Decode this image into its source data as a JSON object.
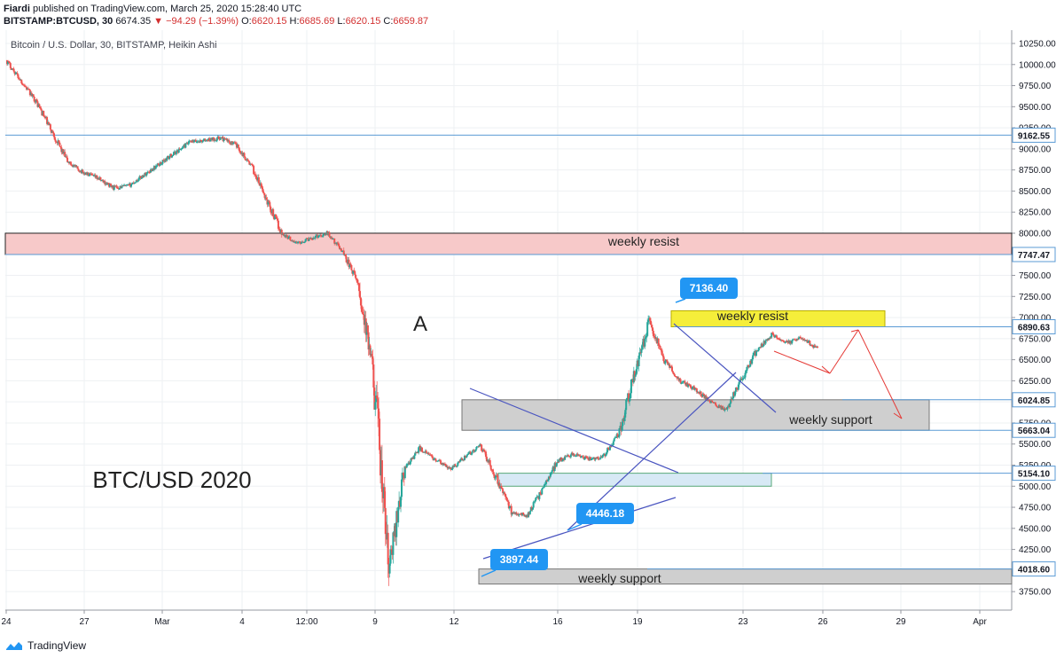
{
  "header": {
    "author": "Fiardi",
    "published_text": "published on TradingView.com, March 25, 2020 15:28:40 UTC",
    "symbol_line": "BITSTAMP:BTCUSD, 30",
    "last_price": "6674.35",
    "change": "▼ −94.29 (−1.39%)",
    "ohlc": [
      {
        "k": "O:",
        "v": "6620.15"
      },
      {
        "k": "H:",
        "v": "6685.69"
      },
      {
        "k": "L:",
        "v": "6620.15"
      },
      {
        "k": "C:",
        "v": "6659.87"
      }
    ]
  },
  "footer": {
    "brand": "TradingView"
  },
  "colors": {
    "up": "#26a69a",
    "down": "#ef5350",
    "hline": "#5b9bd5",
    "trend": "#4a55c0",
    "resist_zone": "#f7c9c9",
    "yellow_zone": "#f5ee3a",
    "grey_zone": "#cfcfcf",
    "lightblue_zone": "#d7e9f5",
    "tag": "#2196f3",
    "arrow": "#e53935"
  },
  "chart_data": {
    "type": "candlestick",
    "title": "Bitcoin / U.S. Dollar, 30, BITSTAMP, Heikin Ashi",
    "big_title": "BTC/USD 2020",
    "ylim": [
      3500,
      10500
    ],
    "y_ticks": [
      "10250.00",
      "10000.00",
      "9750.00",
      "9500.00",
      "9250.00",
      "9000.00",
      "8750.00",
      "8500.00",
      "8250.00",
      "8000.00",
      "7750.00",
      "7500.00",
      "7250.00",
      "7000.00",
      "6750.00",
      "6500.00",
      "6250.00",
      "6000.00",
      "5750.00",
      "5500.00",
      "5250.00",
      "5000.00",
      "4750.00",
      "4500.00",
      "4250.00",
      "4000.00",
      "3750.00"
    ],
    "x_ticks": [
      "24",
      "27",
      "Mar",
      "4",
      "12:00",
      "9",
      "12",
      "16",
      "19",
      "23",
      "26",
      "29",
      "Apr"
    ],
    "price_path": [
      [
        0,
        10050
      ],
      [
        1,
        9800
      ],
      [
        2,
        9550
      ],
      [
        3,
        9200
      ],
      [
        4,
        8850
      ],
      [
        5,
        8720
      ],
      [
        6,
        8650
      ],
      [
        7,
        8540
      ],
      [
        8,
        8560
      ],
      [
        9,
        8690
      ],
      [
        10,
        8820
      ],
      [
        11,
        8950
      ],
      [
        12,
        9080
      ],
      [
        13,
        9100
      ],
      [
        14,
        9130
      ],
      [
        15,
        9050
      ],
      [
        16,
        8800
      ],
      [
        17,
        8400
      ],
      [
        18,
        8000
      ],
      [
        19,
        7880
      ],
      [
        20,
        7950
      ],
      [
        21,
        8000
      ],
      [
        22,
        7780
      ],
      [
        23,
        7400
      ],
      [
        24,
        6300
      ],
      [
        25,
        4000
      ],
      [
        26,
        5200
      ],
      [
        27,
        5450
      ],
      [
        28,
        5320
      ],
      [
        29,
        5200
      ],
      [
        30,
        5350
      ],
      [
        31,
        5480
      ],
      [
        32,
        5100
      ],
      [
        33,
        4700
      ],
      [
        34,
        4650
      ],
      [
        35,
        4950
      ],
      [
        36,
        5300
      ],
      [
        37,
        5380
      ],
      [
        38,
        5320
      ],
      [
        39,
        5350
      ],
      [
        40,
        5620
      ],
      [
        41,
        6300
      ],
      [
        42,
        6950
      ],
      [
        43,
        6500
      ],
      [
        44,
        6250
      ],
      [
        45,
        6150
      ],
      [
        46,
        6000
      ],
      [
        47,
        5900
      ],
      [
        48,
        6250
      ],
      [
        49,
        6600
      ],
      [
        50,
        6800
      ],
      [
        51,
        6700
      ],
      [
        52,
        6760
      ],
      [
        53,
        6630
      ]
    ],
    "horizontal_levels": [
      {
        "label": "9162.55",
        "value": 9162.55
      },
      {
        "label": "7747.47",
        "value": 7747.47
      },
      {
        "label": "6890.63",
        "value": 6890.63
      },
      {
        "label": "6024.85",
        "value": 6024.85
      },
      {
        "label": "5663.04",
        "value": 5663.04
      },
      {
        "label": "5154.10",
        "value": 5154.1
      },
      {
        "label": "4018.60",
        "value": 4018.6
      }
    ],
    "annotations": {
      "zones": [
        {
          "label": "weekly resist",
          "from": 7747.47,
          "to": 8000,
          "style": "resist"
        },
        {
          "label": "weekly resist",
          "from": 6890.63,
          "to": 7080,
          "style": "yellow"
        },
        {
          "label": "weekly support",
          "from": 5663.04,
          "to": 6024.85,
          "style": "grey"
        },
        {
          "label": "",
          "from": 5000,
          "to": 5154.1,
          "style": "lightblue"
        },
        {
          "label": "weekly support",
          "from": 3840,
          "to": 4018.6,
          "style": "grey"
        }
      ],
      "price_tags": [
        "7136.40",
        "4446.18",
        "3897.44"
      ],
      "marker_text": "A"
    }
  }
}
